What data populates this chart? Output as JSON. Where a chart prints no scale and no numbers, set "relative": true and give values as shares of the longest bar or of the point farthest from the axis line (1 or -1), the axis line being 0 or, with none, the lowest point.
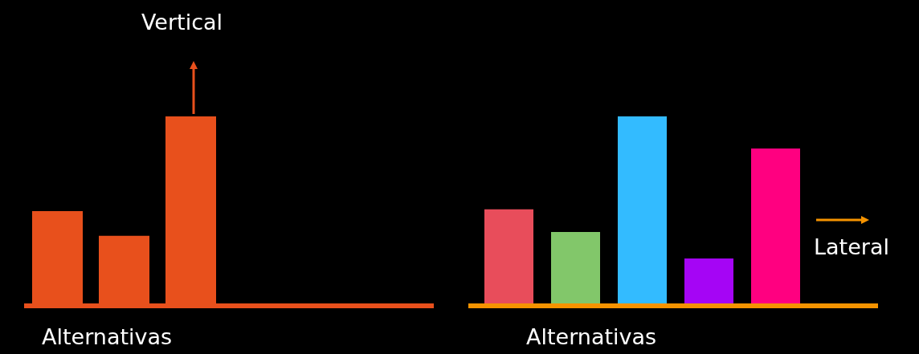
{
  "chart_data": [
    {
      "type": "bar",
      "relative": true,
      "categories": [
        null,
        null,
        null
      ],
      "xlabel": "Alternativas",
      "annotations": [
        "Vertical"
      ],
      "series": [
        {
          "color": "#e8501c",
          "values": [
            0.5,
            0.37,
            1
          ]
        }
      ],
      "ref_lines": [
        {
          "axis": "y",
          "value": 0,
          "color": "#e8501c"
        }
      ]
    },
    {
      "type": "bar",
      "relative": true,
      "categories": [
        null,
        null,
        null,
        null,
        null
      ],
      "xlabel": "Alternativas",
      "annotations": [
        "Lateral"
      ],
      "series": [
        {
          "colors": [
            "#e84d5b",
            "#82c76a",
            "#33bbff",
            "#a505f5",
            "#ff0080"
          ],
          "values": [
            0.51,
            0.39,
            1,
            0.25,
            0.83
          ]
        }
      ],
      "ref_lines": [
        {
          "axis": "y",
          "value": 0,
          "color": "#f59300"
        }
      ]
    }
  ]
}
